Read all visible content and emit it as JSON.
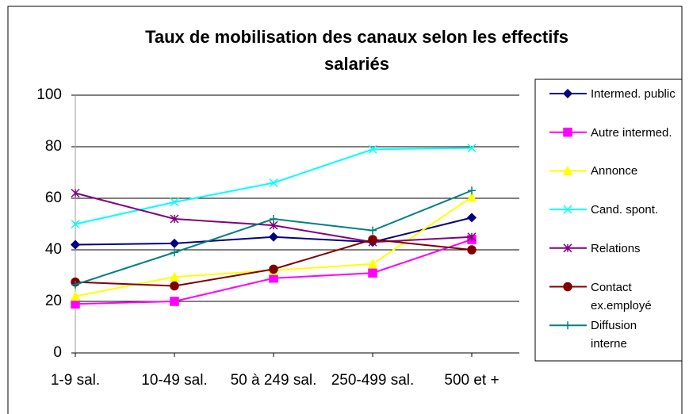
{
  "chart_data": {
    "type": "line",
    "title": "Taux de mobilisation des canaux selon les effectifs salariés",
    "categories": [
      "1-9 sal.",
      "10-49 sal.",
      "50 à 249 sal.",
      "250-499 sal.",
      "500 et +"
    ],
    "ylim": [
      0,
      100
    ],
    "yticks": [
      0,
      20,
      40,
      60,
      80,
      100
    ],
    "grid": true,
    "legend": "right",
    "series": [
      {
        "name": "Intermed. public",
        "color": "#000080",
        "marker": "diamond",
        "values": [
          42,
          42.5,
          45,
          43,
          52.5
        ]
      },
      {
        "name": "Autre intermed.",
        "color": "#ff00ff",
        "marker": "square",
        "values": [
          19,
          20,
          29,
          31,
          44
        ]
      },
      {
        "name": "Annonce",
        "color": "#ffff00",
        "marker": "triangle",
        "values": [
          22,
          29.5,
          32,
          34.5,
          60.5
        ]
      },
      {
        "name": "Cand. spont.",
        "color": "#00ffff",
        "marker": "x",
        "values": [
          50,
          58.5,
          66,
          79,
          79.5
        ]
      },
      {
        "name": "Relations",
        "color": "#800080",
        "marker": "star",
        "values": [
          62,
          52,
          49.5,
          43,
          45
        ]
      },
      {
        "name": "Contact ex.employé",
        "color": "#800000",
        "marker": "circle",
        "values": [
          27.5,
          26,
          32.5,
          44,
          40
        ]
      },
      {
        "name": "Diffusion interne",
        "color": "#008080",
        "marker": "plus",
        "values": [
          26.5,
          39,
          52,
          47.5,
          63
        ]
      }
    ]
  }
}
